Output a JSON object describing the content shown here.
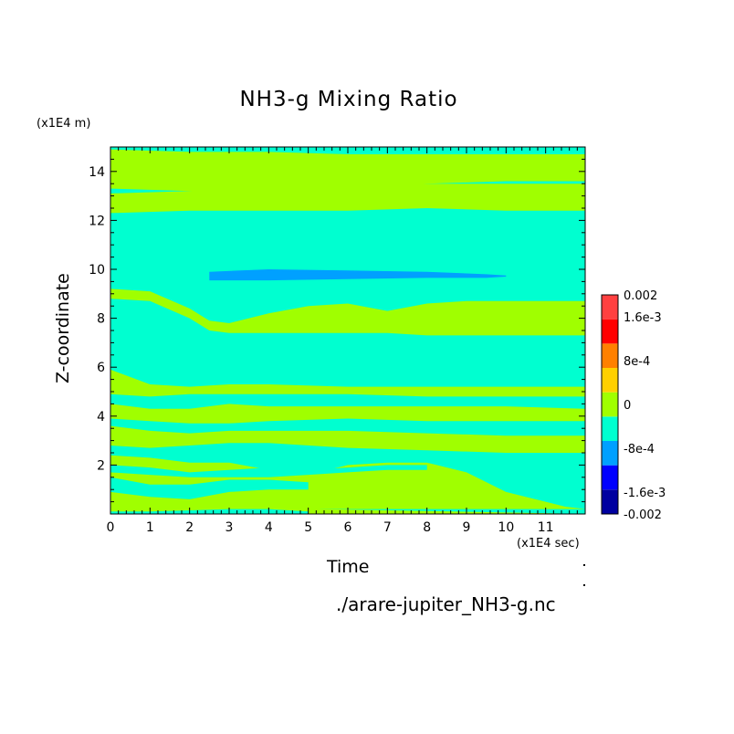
{
  "chart_data": {
    "type": "heatmap",
    "title": "NH3-g Mixing Ratio",
    "xlabel": "Time",
    "ylabel": "Z-coordinate",
    "x_unit": "(x1E4 sec)",
    "y_unit": "(x1E4 m)",
    "source_label": "./arare-jupiter_NH3-g.nc",
    "xlim": [
      0,
      12
    ],
    "ylim": [
      0,
      15
    ],
    "x_ticks": [
      "0",
      "1",
      "2",
      "3",
      "4",
      "5",
      "6",
      "7",
      "8",
      "9",
      "10",
      "11"
    ],
    "y_ticks": [
      "2",
      "4",
      "6",
      "8",
      "10",
      "12",
      "14"
    ],
    "colorbar": {
      "colors": [
        "#0000a0",
        "#0000ff",
        "#00a0ff",
        "#00ffd0",
        "#a0ff00",
        "#ffd000",
        "#ff8000",
        "#ff0000",
        "#ff4040"
      ],
      "labels": [
        "-0.002",
        "-1.6e-3",
        "-8e-4",
        "0",
        "8e-4",
        "1.6e-3",
        "0.002"
      ],
      "label_values": [
        -0.002,
        -0.0016,
        -0.0008,
        0,
        0.0008,
        0.0016,
        0.002
      ],
      "range": [
        -0.002,
        0.002
      ]
    },
    "background_level": "#00ffd0",
    "positive_level": "#a0ff00",
    "negative_level": "#00a0ff",
    "positive_bands": [
      {
        "t": [
          0,
          2,
          4,
          6,
          8,
          10,
          12
        ],
        "lower": [
          13.3,
          13.2,
          13.0,
          13.3,
          13.5,
          13.6,
          13.6
        ],
        "upper": [
          14.9,
          14.8,
          14.8,
          14.7,
          14.7,
          14.7,
          14.7
        ]
      },
      {
        "t": [
          0,
          2,
          4,
          6,
          8,
          10,
          12
        ],
        "lower": [
          12.3,
          12.4,
          12.4,
          12.4,
          12.5,
          12.4,
          12.4
        ],
        "upper": [
          13.1,
          13.2,
          13.4,
          13.5,
          13.5,
          13.5,
          13.5
        ]
      },
      {
        "t": [
          0,
          1,
          2,
          2.5,
          3,
          4,
          5,
          6,
          7,
          8,
          9,
          10,
          11,
          12
        ],
        "lower": [
          8.8,
          8.7,
          8.0,
          7.5,
          7.4,
          7.4,
          7.4,
          7.4,
          7.4,
          7.3,
          7.3,
          7.3,
          7.3,
          7.3
        ],
        "upper": [
          9.2,
          9.1,
          8.4,
          7.9,
          7.8,
          8.2,
          8.5,
          8.6,
          8.3,
          8.6,
          8.7,
          8.7,
          8.7,
          8.7
        ]
      },
      {
        "t": [
          0,
          1,
          2,
          3,
          4,
          6,
          8,
          10,
          12
        ],
        "lower": [
          4.9,
          4.8,
          4.9,
          4.9,
          4.9,
          4.9,
          4.8,
          4.8,
          4.8
        ],
        "upper": [
          5.9,
          5.3,
          5.2,
          5.3,
          5.3,
          5.2,
          5.2,
          5.2,
          5.2
        ]
      },
      {
        "t": [
          0,
          1,
          2,
          3,
          4,
          6,
          8,
          10,
          12
        ],
        "lower": [
          3.9,
          3.8,
          3.7,
          3.7,
          3.8,
          3.9,
          3.8,
          3.8,
          3.8
        ],
        "upper": [
          4.5,
          4.3,
          4.3,
          4.5,
          4.4,
          4.4,
          4.4,
          4.4,
          4.3
        ]
      },
      {
        "t": [
          0,
          1,
          2,
          3,
          4,
          6,
          8,
          10,
          12
        ],
        "lower": [
          2.8,
          2.7,
          2.8,
          2.9,
          2.9,
          2.7,
          2.6,
          2.5,
          2.5
        ],
        "upper": [
          3.6,
          3.4,
          3.3,
          3.4,
          3.4,
          3.4,
          3.3,
          3.2,
          3.2
        ]
      },
      {
        "t": [
          0,
          1,
          2,
          3,
          4,
          5,
          5.5,
          6,
          7,
          8,
          9,
          10,
          10.5,
          11.5,
          12
        ],
        "lower": [
          0.2,
          0.2,
          0.2,
          0.2,
          0.2,
          0.2,
          0.2,
          0.2,
          0.2,
          0.2,
          0.2,
          0.2,
          0.2,
          0.2,
          0.2
        ],
        "upper": [
          2.4,
          2.3,
          2.1,
          2.1,
          1.8,
          1.7,
          1.8,
          2.0,
          2.1,
          2.1,
          1.7,
          0.9,
          0.7,
          0.3,
          0.2
        ]
      },
      {
        "t": [
          0,
          1,
          2,
          3,
          4,
          5,
          5.3,
          12
        ],
        "lower": [
          0.0,
          0.0,
          0.0,
          0.0,
          0.0,
          0.0,
          0.0,
          0.0
        ],
        "upper": [
          0.7,
          0.5,
          0.6,
          0.8,
          0.9,
          0.7,
          0.2,
          0.0
        ]
      }
    ],
    "background_bands": [
      {
        "t": [
          0,
          1,
          2,
          3,
          4,
          5
        ],
        "lower": [
          0.9,
          0.7,
          0.6,
          0.9,
          1.0,
          1.0
        ],
        "upper": [
          1.5,
          1.2,
          1.2,
          1.4,
          1.4,
          1.3
        ]
      },
      {
        "t": [
          0,
          1,
          2,
          3,
          4,
          5
        ],
        "lower": [
          0.0,
          0.0,
          0.0,
          0.0,
          0.0,
          0.0
        ],
        "upper": [
          0.1,
          0.1,
          0.15,
          0.2,
          0.2,
          0.1
        ]
      },
      {
        "t": [
          0,
          1,
          2,
          3,
          4,
          5,
          6,
          7,
          8
        ],
        "lower": [
          1.7,
          1.6,
          1.5,
          1.5,
          1.5,
          1.6,
          1.7,
          1.8,
          1.8
        ],
        "upper": [
          2.0,
          1.9,
          1.7,
          1.8,
          1.9,
          1.8,
          1.9,
          2.0,
          2.0
        ]
      }
    ],
    "negative_region": {
      "t": [
        2.5,
        4,
        6,
        8,
        9.5,
        10
      ],
      "lower": [
        9.55,
        9.55,
        9.6,
        9.65,
        9.65,
        9.7
      ],
      "upper": [
        9.9,
        10.0,
        9.95,
        9.9,
        9.8,
        9.75
      ]
    }
  }
}
